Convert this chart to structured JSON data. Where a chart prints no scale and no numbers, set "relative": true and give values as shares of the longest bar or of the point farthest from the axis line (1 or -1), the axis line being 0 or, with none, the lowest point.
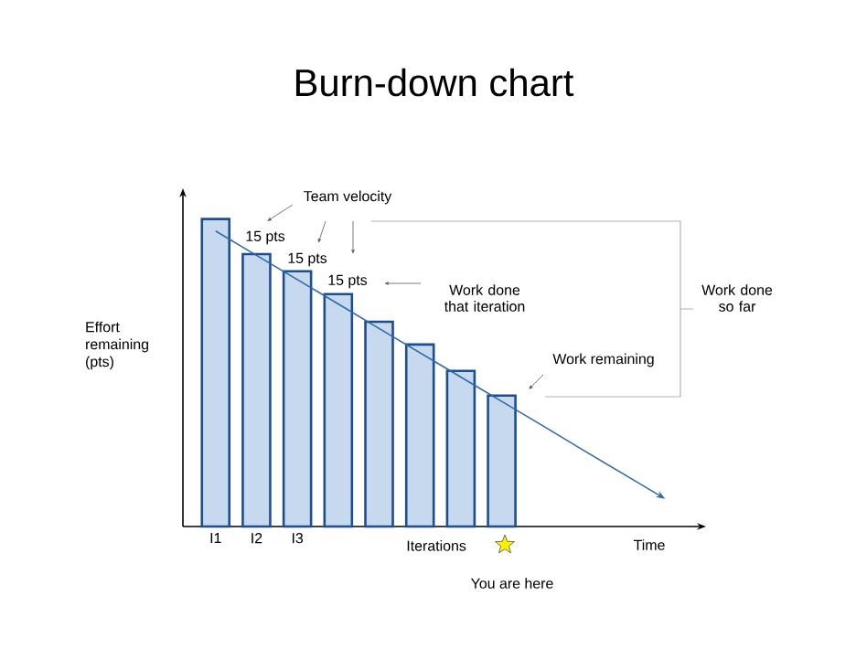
{
  "chart_data": {
    "type": "bar",
    "title": "Burn-down chart",
    "xlabel": "Iterations",
    "ylabel": "Effort remaining (pts)",
    "relative": true,
    "categories": [
      "I1",
      "I2",
      "I3",
      null,
      null,
      null,
      null,
      null,
      null,
      null,
      null,
      null
    ],
    "series": [
      {
        "color": "#c6d9ee",
        "values": [
          1.0,
          0.886,
          0.83,
          0.756,
          0.666,
          0.592,
          0.506,
          0.426,
          null,
          null,
          null,
          null
        ]
      },
      {
        "type": "line",
        "color": "#2e6aa8",
        "values": [
          0.961,
          0.882,
          0.803,
          0.724,
          0.644,
          0.565,
          0.486,
          0.407,
          0.328,
          0.248,
          0.169,
          0.09
        ]
      }
    ],
    "annotations": [
      "Team velocity",
      "15 pts",
      "15 pts",
      "15 pts",
      "Work done that iteration",
      "Work done so far",
      "Work remaining",
      "Time",
      "You are here"
    ]
  }
}
